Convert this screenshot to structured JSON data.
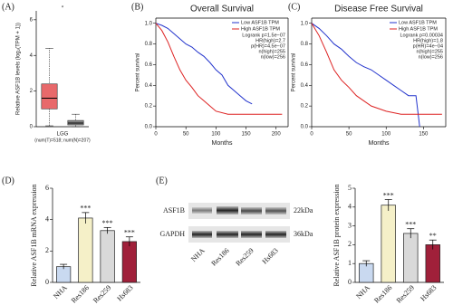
{
  "panels": [
    "(A)",
    "(B)",
    "(C)",
    "(D)",
    "(E)"
  ],
  "blot": {
    "rows": [
      "ASF1B",
      "GAPDH"
    ],
    "sizes": [
      "22kDa",
      "36kDa"
    ],
    "lanes": [
      "NHA",
      "Res186",
      "Res259",
      "Hs683"
    ]
  },
  "chart_data": [
    {
      "type": "box",
      "ylabel": "Relative ASF1B levels (log₂(TPM + 1))",
      "xlabel": "LGG",
      "subtitle": "(num(T)=518; num(N)=207)",
      "annotation": "*",
      "boxes": [
        {
          "color": "#e8696b",
          "whisker_low": 0.05,
          "q1": 1.0,
          "median": 1.6,
          "q3": 2.4,
          "whisker_high": 4.4
        },
        {
          "color": "#888888",
          "whisker_low": 0,
          "q1": 0.1,
          "median": 0.2,
          "q3": 0.35,
          "whisker_high": 0.7
        }
      ],
      "ylim": [
        0,
        6.5
      ],
      "yticks": [
        0,
        2,
        4,
        6
      ]
    },
    {
      "type": "line",
      "title": "Overall Survival",
      "xlabel": "Months",
      "ylabel": "Percent survival",
      "annotations": [
        "Logrank p=1.5e−07",
        "HR(high)=2.7",
        "p(HR)=4.5e−07",
        "n(high)=255",
        "n(low)=256"
      ],
      "series": [
        {
          "name": "Low ASF1B TPM",
          "color": "#2233cc",
          "x": [
            0,
            10,
            20,
            30,
            40,
            50,
            60,
            70,
            80,
            90,
            100,
            110,
            120,
            130,
            140,
            150,
            160
          ],
          "values": [
            1,
            0.98,
            0.95,
            0.9,
            0.85,
            0.8,
            0.77,
            0.72,
            0.68,
            0.62,
            0.55,
            0.5,
            0.4,
            0.35,
            0.3,
            0.25,
            0.22
          ]
        },
        {
          "name": "High ASF1B TPM",
          "color": "#dd2222",
          "x": [
            0,
            10,
            20,
            30,
            40,
            50,
            60,
            70,
            80,
            90,
            100,
            120,
            140,
            160,
            180,
            210
          ],
          "values": [
            1,
            0.93,
            0.82,
            0.68,
            0.55,
            0.45,
            0.38,
            0.3,
            0.25,
            0.2,
            0.15,
            0.12,
            0.12,
            0.12,
            0.12,
            0.12
          ]
        }
      ],
      "xlim": [
        0,
        220
      ],
      "xticks": [
        0,
        50,
        100,
        150,
        200
      ],
      "ylim": [
        0,
        1.05
      ],
      "yticks": [
        {
          "value": 0,
          "label": "0.0"
        },
        0.2,
        0.4,
        0.6,
        0.8,
        {
          "value": 1,
          "label": "1.0"
        }
      ]
    },
    {
      "type": "line",
      "title": "Disease Free Survival",
      "xlabel": "Months",
      "ylabel": "Percent survival",
      "annotations": [
        "Logrank p=0.00034",
        "HR(high)=1.8",
        "p(HR)=4e−04",
        "n(high)=255",
        "n(low)=256"
      ],
      "series": [
        {
          "name": "Low ASF1B TPM",
          "color": "#2233cc",
          "x": [
            0,
            10,
            20,
            30,
            40,
            50,
            60,
            70,
            80,
            90,
            100,
            110,
            120,
            130,
            140,
            145
          ],
          "values": [
            1,
            0.95,
            0.88,
            0.8,
            0.75,
            0.68,
            0.62,
            0.58,
            0.55,
            0.5,
            0.45,
            0.4,
            0.35,
            0.3,
            0.3,
            0
          ]
        },
        {
          "name": "High ASF1B TPM",
          "color": "#dd2222",
          "x": [
            0,
            10,
            20,
            30,
            40,
            50,
            60,
            70,
            80,
            100,
            120,
            140,
            160,
            175
          ],
          "values": [
            1,
            0.88,
            0.72,
            0.55,
            0.45,
            0.38,
            0.3,
            0.25,
            0.2,
            0.15,
            0.12,
            0.12,
            0.12,
            0.12
          ]
        }
      ],
      "xlim": [
        0,
        180
      ],
      "xticks": [
        0,
        50,
        100,
        150
      ],
      "ylim": [
        0,
        1.05
      ],
      "yticks": [
        {
          "value": 0,
          "label": "0.0"
        },
        0.2,
        0.4,
        0.6,
        0.8,
        {
          "value": 1,
          "label": "1.0"
        }
      ]
    },
    {
      "type": "bar",
      "ylabel": "Relative ASF1B mRNA expression",
      "categories": [
        "NHA",
        "Res186",
        "Res259",
        "Hs683"
      ],
      "values": [
        1.0,
        4.1,
        3.3,
        2.6
      ],
      "errors": [
        0.15,
        0.35,
        0.2,
        0.3
      ],
      "annotations": [
        null,
        "***",
        "***",
        "***"
      ],
      "colors": [
        "#c9d9f0",
        "#f5f0c8",
        "#d9d9d9",
        "#a0203a"
      ],
      "ylim": [
        0,
        6
      ],
      "yticks": [
        0,
        2,
        4,
        6
      ]
    },
    {
      "type": "bar",
      "ylabel": "Relative ASF1B protein expression",
      "categories": [
        "NHA",
        "Res186",
        "Res259",
        "Hs683"
      ],
      "values": [
        1.0,
        4.1,
        2.6,
        2.0
      ],
      "errors": [
        0.15,
        0.3,
        0.25,
        0.25
      ],
      "annotations": [
        null,
        "***",
        "***",
        "**"
      ],
      "colors": [
        "#c9d9f0",
        "#f5f0c8",
        "#d9d9d9",
        "#a0203a"
      ],
      "ylim": [
        0,
        5
      ],
      "yticks": [
        0,
        1,
        2,
        3,
        4,
        5
      ]
    }
  ]
}
